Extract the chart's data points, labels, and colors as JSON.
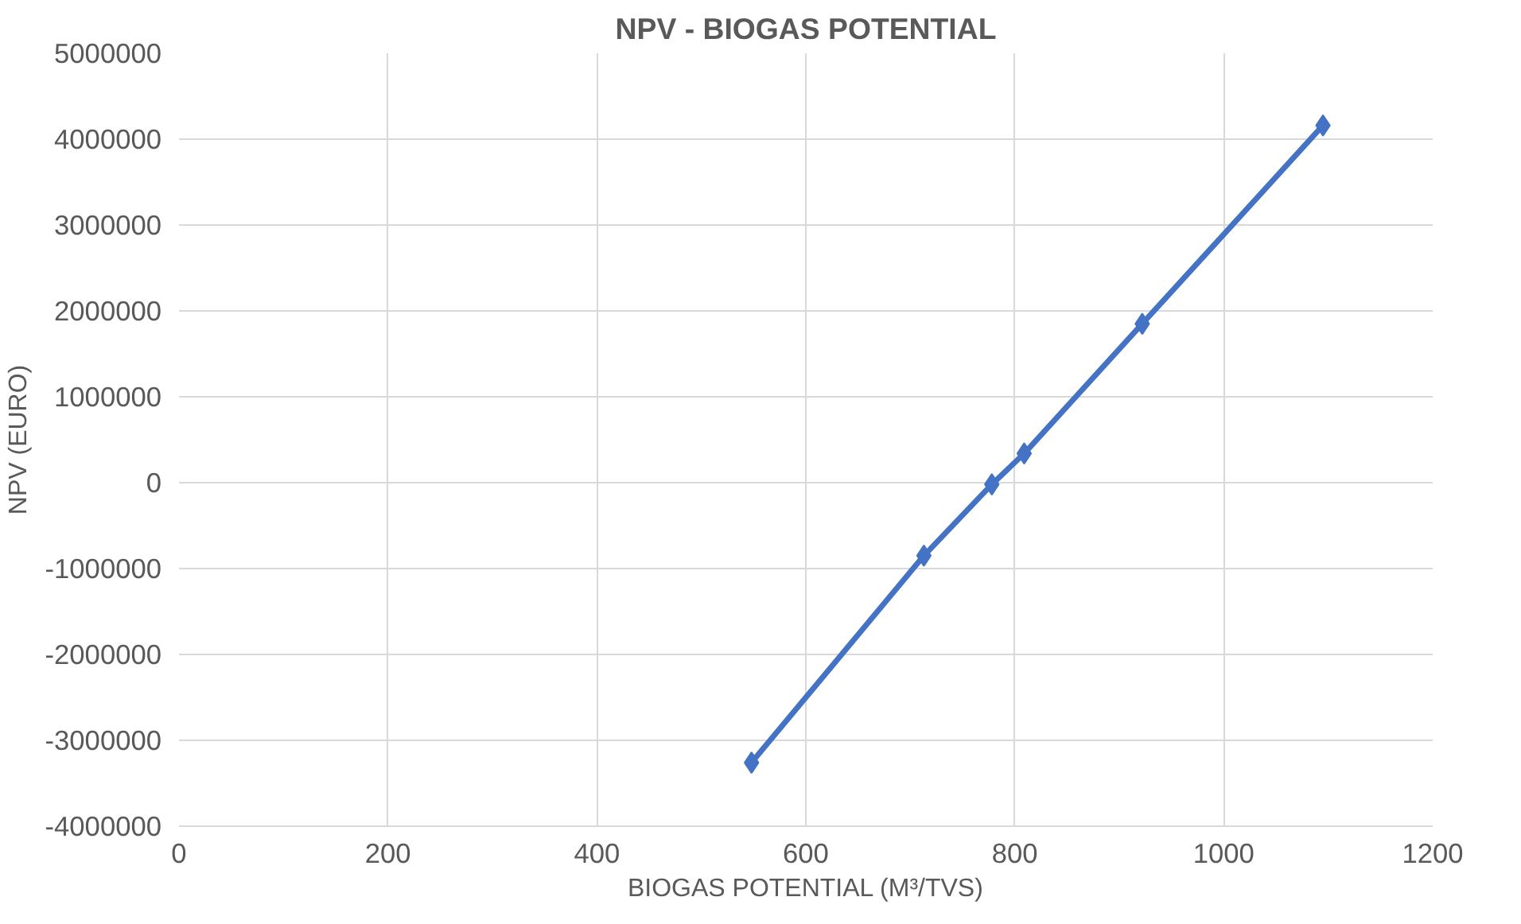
{
  "chart_data": {
    "type": "line",
    "title": "NPV - BIOGAS POTENTIAL",
    "xlabel": "BIOGAS POTENTIAL (M³/TVS)",
    "ylabel": "NPV (EURO)",
    "x": [
      548,
      713,
      778,
      809,
      922,
      1095
    ],
    "series": [
      {
        "color": "#4472c4",
        "values": [
          -3260000,
          -850000,
          -20000,
          340000,
          1850000,
          4160000
        ]
      }
    ],
    "xlim": [
      0,
      1200
    ],
    "xticks": [
      0,
      200,
      400,
      600,
      800,
      1000,
      1200
    ],
    "ylim": [
      -4000000,
      5000000
    ],
    "yticks": [
      -4000000,
      -3000000,
      -2000000,
      -1000000,
      0,
      1000000,
      2000000,
      3000000,
      4000000,
      5000000
    ],
    "grid": true,
    "marker": "diamond",
    "line_style": "solid"
  }
}
